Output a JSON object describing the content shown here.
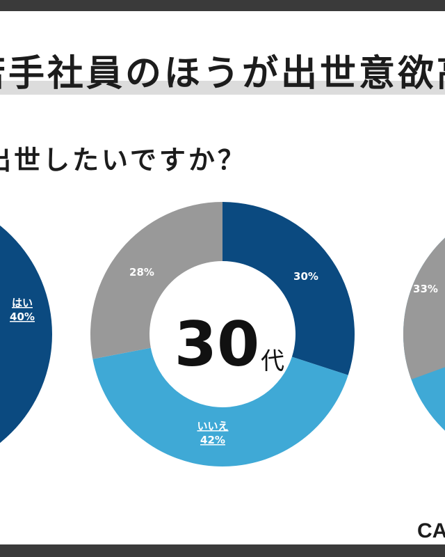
{
  "header": {
    "title": "若手社員のほうが出世意欲高",
    "question": "出世したいですか？"
  },
  "brand": "CA",
  "colors": {
    "dark_navy": "#0b4a80",
    "sky_blue": "#3fa9d6",
    "gray": "#999999"
  },
  "chart_data": [
    {
      "type": "pie",
      "center_label": "",
      "slices": [
        {
          "label": "はい",
          "value": 40,
          "value_text": "40%",
          "color": "#0b4a80"
        }
      ]
    },
    {
      "type": "pie",
      "center_label": "30",
      "center_suffix": "代",
      "slices": [
        {
          "label": "",
          "value": 30,
          "value_text": "30%",
          "color": "#0b4a80"
        },
        {
          "label": "いいえ",
          "value": 42,
          "value_text": "42%",
          "color": "#3fa9d6"
        },
        {
          "label": "",
          "value": 28,
          "value_text": "28%",
          "color": "#999999"
        }
      ]
    },
    {
      "type": "pie",
      "center_label": "",
      "slices": [
        {
          "label": "",
          "value": 33,
          "value_text": "33%",
          "color": "#999999"
        }
      ]
    }
  ]
}
